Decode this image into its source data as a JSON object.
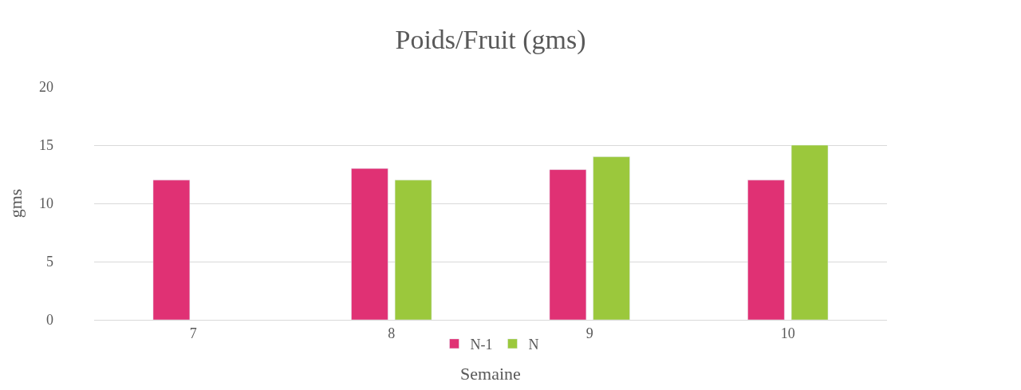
{
  "chart_data": {
    "type": "bar",
    "title": "Poids/Fruit (gms)",
    "xlabel": "Semaine",
    "ylabel": "gms",
    "categories": [
      "7",
      "8",
      "9",
      "10"
    ],
    "series": [
      {
        "name": "N-1",
        "color": "#e03174",
        "values": [
          12,
          13,
          12.9,
          12
        ]
      },
      {
        "name": "N",
        "color": "#9bc83c",
        "values": [
          null,
          12,
          14,
          15
        ]
      }
    ],
    "ylim": [
      0,
      20
    ],
    "yticks": [
      0,
      5,
      10,
      15,
      20
    ],
    "grid": "y",
    "legend": "bottom"
  }
}
